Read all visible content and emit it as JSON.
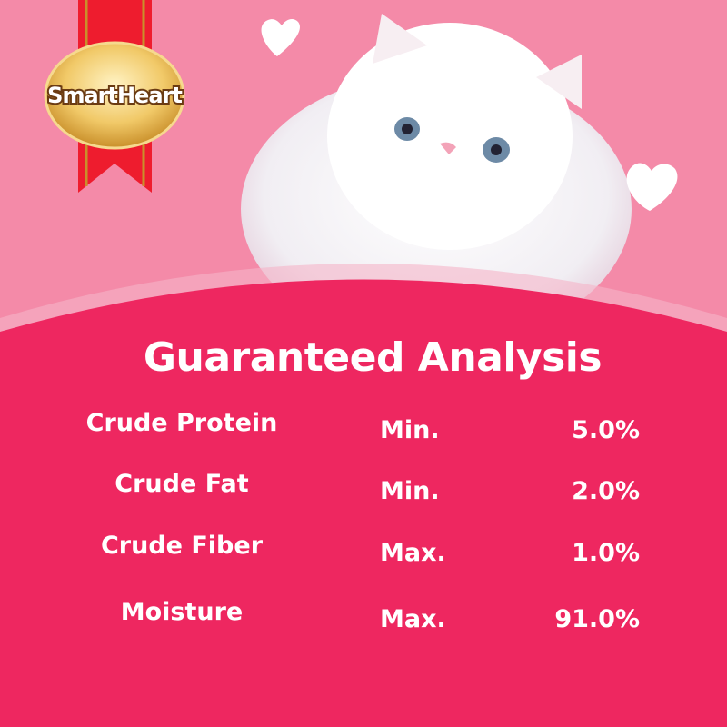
{
  "brand": {
    "logo_text": "SmartHeart"
  },
  "colors": {
    "background_top": "#f48aa8",
    "panel": "#ee2760",
    "ribbon": "#ee1c2e",
    "gold": "#e8b84e"
  },
  "title": "Guaranteed Analysis",
  "rows": [
    {
      "nutrient": "Crude Protein",
      "qualifier": "Min.",
      "value": "5.0%"
    },
    {
      "nutrient": "Crude Fat",
      "qualifier": "Min.",
      "value": "2.0%"
    },
    {
      "nutrient": "Crude Fiber",
      "qualifier": "Max.",
      "value": "1.0%"
    },
    {
      "nutrient": "Moisture",
      "qualifier": "Max.",
      "value": "91.0%"
    }
  ]
}
